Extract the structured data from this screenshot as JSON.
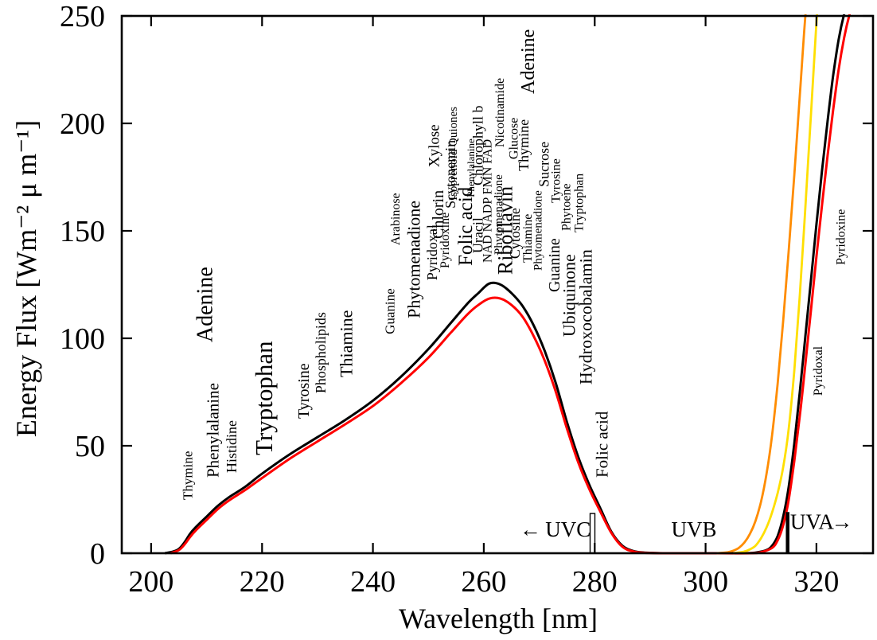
{
  "chart_data": {
    "type": "line",
    "title": "",
    "xlabel": "Wavelength [nm]",
    "ylabel": "Energy Flux [Wm⁻² μ m⁻¹]",
    "xlim": [
      194.7,
      330.2
    ],
    "ylim": [
      0,
      250
    ],
    "x_ticks": [
      200,
      220,
      240,
      260,
      280,
      300,
      320
    ],
    "y_ticks": [
      0,
      50,
      100,
      150,
      200,
      250
    ],
    "grid": false,
    "legend": "none",
    "colors": {
      "black": "#000000",
      "red": "#ff0000",
      "green": "#00c300",
      "blue": "#0000ee",
      "violet": "#ee82ee",
      "dark_red": "#a52a2a",
      "orange": "#ff8c00",
      "yellow": "#ffdf00"
    },
    "series": [
      {
        "name": "black-flux-curve",
        "color": "black",
        "width": 3,
        "points": [
          [
            202.5,
            0
          ],
          [
            204,
            0.8
          ],
          [
            205,
            2
          ],
          [
            206,
            5
          ],
          [
            207,
            9
          ],
          [
            208,
            12
          ],
          [
            210,
            17
          ],
          [
            212,
            22
          ],
          [
            214,
            26
          ],
          [
            217,
            31
          ],
          [
            220,
            37
          ],
          [
            225,
            46
          ],
          [
            230,
            54
          ],
          [
            235,
            62
          ],
          [
            240,
            71
          ],
          [
            245,
            82
          ],
          [
            250,
            95
          ],
          [
            254,
            107
          ],
          [
            257,
            116
          ],
          [
            259,
            121
          ],
          [
            261,
            125.5
          ],
          [
            263,
            125
          ],
          [
            265,
            121
          ],
          [
            267,
            115
          ],
          [
            269,
            106
          ],
          [
            271,
            94
          ],
          [
            273,
            79
          ],
          [
            275,
            61
          ],
          [
            277,
            45
          ],
          [
            279,
            32
          ],
          [
            281,
            21
          ],
          [
            283,
            10
          ],
          [
            285,
            3.5
          ],
          [
            287,
            1
          ],
          [
            289,
            0.3
          ],
          [
            293,
            0
          ],
          [
            300,
            0
          ],
          [
            307,
            0
          ],
          [
            309,
            0.3
          ],
          [
            311,
            1.5
          ],
          [
            312,
            3.5
          ],
          [
            313,
            8
          ],
          [
            314,
            17
          ],
          [
            315,
            31
          ],
          [
            316,
            51
          ],
          [
            317,
            75
          ],
          [
            318,
            101
          ],
          [
            319,
            127
          ],
          [
            320,
            153
          ],
          [
            321,
            178
          ],
          [
            322,
            201
          ],
          [
            323,
            222
          ],
          [
            324,
            239
          ],
          [
            325,
            251
          ],
          [
            326,
            259
          ]
        ]
      },
      {
        "name": "red-flux-curve",
        "color": "red",
        "width": 3,
        "points": [
          [
            203.5,
            0
          ],
          [
            205,
            1.5
          ],
          [
            206,
            4
          ],
          [
            207,
            7.5
          ],
          [
            208,
            10.5
          ],
          [
            210,
            15.5
          ],
          [
            212,
            20.5
          ],
          [
            214,
            24.5
          ],
          [
            217,
            29.5
          ],
          [
            220,
            35
          ],
          [
            225,
            44
          ],
          [
            230,
            52
          ],
          [
            235,
            60
          ],
          [
            240,
            68.5
          ],
          [
            245,
            79
          ],
          [
            250,
            91
          ],
          [
            254,
            102.5
          ],
          [
            257,
            111
          ],
          [
            259,
            115.5
          ],
          [
            261,
            118.5
          ],
          [
            263,
            118.5
          ],
          [
            265,
            115.5
          ],
          [
            267,
            110
          ],
          [
            269,
            101
          ],
          [
            271,
            89.5
          ],
          [
            273,
            75
          ],
          [
            275,
            58
          ],
          [
            277,
            42.5
          ],
          [
            279,
            30
          ],
          [
            281,
            19.5
          ],
          [
            283,
            9.5
          ],
          [
            285,
            3
          ],
          [
            287,
            0.8
          ],
          [
            289,
            0.2
          ],
          [
            293,
            0
          ],
          [
            300,
            0
          ],
          [
            308,
            0
          ],
          [
            310,
            0.5
          ],
          [
            312,
            2.5
          ],
          [
            313,
            6
          ],
          [
            314,
            13
          ],
          [
            315,
            25
          ],
          [
            316,
            43
          ],
          [
            317,
            64
          ],
          [
            318,
            88
          ],
          [
            319,
            113
          ],
          [
            320,
            138
          ],
          [
            321,
            162
          ],
          [
            322,
            185
          ],
          [
            323,
            206
          ],
          [
            324,
            225
          ],
          [
            325,
            240
          ],
          [
            326,
            251
          ],
          [
            327,
            259
          ]
        ]
      },
      {
        "name": "orange-flux-curve",
        "color": "orange",
        "width": 2.8,
        "points": [
          [
            302,
            0
          ],
          [
            304,
            0.5
          ],
          [
            305,
            1.2
          ],
          [
            306,
            2.5
          ],
          [
            307,
            5
          ],
          [
            308,
            9
          ],
          [
            309,
            15
          ],
          [
            310,
            24
          ],
          [
            311,
            37
          ],
          [
            312,
            55
          ],
          [
            313,
            79
          ],
          [
            314,
            108
          ],
          [
            315,
            141
          ],
          [
            316,
            176
          ],
          [
            317,
            213
          ],
          [
            318,
            250
          ],
          [
            318.6,
            262
          ]
        ]
      },
      {
        "name": "yellow-flux-curve",
        "color": "yellow",
        "width": 2.8,
        "points": [
          [
            305,
            0
          ],
          [
            307,
            0.8
          ],
          [
            308,
            1.8
          ],
          [
            309,
            3.5
          ],
          [
            310,
            7
          ],
          [
            311,
            12
          ],
          [
            312,
            19
          ],
          [
            313,
            28
          ],
          [
            314,
            40
          ],
          [
            315,
            58
          ],
          [
            316,
            85
          ],
          [
            317,
            120
          ],
          [
            318,
            161
          ],
          [
            319,
            204
          ],
          [
            320,
            247
          ],
          [
            320.4,
            262
          ]
        ]
      }
    ],
    "molecule_labels": [
      {
        "text": "Thymine",
        "nm": 206.7,
        "flux": 24.8,
        "size": 17,
        "color": "black"
      },
      {
        "text": "Phenylalanine",
        "nm": 211.2,
        "flux": 35.2,
        "size": 21,
        "color": "green"
      },
      {
        "text": "Histidine",
        "nm": 214.6,
        "flux": 37.4,
        "size": 18,
        "color": "green"
      },
      {
        "text": "Adenine",
        "nm": 209.8,
        "flux": 98.1,
        "size": 28,
        "color": "black"
      },
      {
        "text": "Tryptophan",
        "nm": 220.5,
        "flux": 45.6,
        "size": 31,
        "color": "green"
      },
      {
        "text": "Tyrosine",
        "nm": 227.6,
        "flux": 62.6,
        "size": 20,
        "color": "green"
      },
      {
        "text": "Phospholipids",
        "nm": 230.7,
        "flux": 74.4,
        "size": 18,
        "color": "violet"
      },
      {
        "text": "Thiamine",
        "nm": 235.3,
        "flux": 81.9,
        "size": 22,
        "color": "blue"
      },
      {
        "text": "Guanine",
        "nm": 243.1,
        "flux": 101.9,
        "size": 17,
        "color": "black"
      },
      {
        "text": "Arabinose",
        "nm": 244.1,
        "flux": 143.3,
        "size": 16,
        "color": "dark_red"
      },
      {
        "text": "Phytomenadione",
        "nm": 247.5,
        "flux": 109.3,
        "size": 22,
        "color": "blue"
      },
      {
        "text": "Pyridoxal",
        "nm": 250.8,
        "flux": 127.0,
        "size": 18,
        "color": "blue"
      },
      {
        "text": "Chlorin",
        "nm": 251.8,
        "flux": 146.3,
        "size": 20,
        "color": "red"
      },
      {
        "text": "Xylose",
        "nm": 251.1,
        "flux": 179.6,
        "size": 19,
        "color": "dark_red"
      },
      {
        "text": "Scytonemin",
        "nm": 254.1,
        "flux": 160.4,
        "size": 18,
        "color": "red"
      },
      {
        "text": "Isoprenoid Quiones",
        "nm": 254.5,
        "flux": 164.1,
        "size": 15,
        "color": "violet"
      },
      {
        "text": "Pyridoxine",
        "nm": 253.0,
        "flux": 132.6,
        "size": 16,
        "color": "blue"
      },
      {
        "text": "Folic acid",
        "nm": 256.8,
        "flux": 133.7,
        "size": 25,
        "color": "blue"
      },
      {
        "text": "Uracil",
        "nm": 259.0,
        "flux": 139.6,
        "size": 18,
        "color": "black"
      },
      {
        "text": "Phenylalanine",
        "nm": 257.7,
        "flux": 165.6,
        "size": 13,
        "color": "green"
      },
      {
        "text": "Chlorophyll b",
        "nm": 259.0,
        "flux": 171.1,
        "size": 18,
        "color": "red"
      },
      {
        "text": "NAD NADP FMN FAD",
        "nm": 260.7,
        "flux": 135.2,
        "size": 16,
        "color": "blue"
      },
      {
        "text": "Phytomenadione",
        "nm": 262.7,
        "flux": 138.9,
        "size": 15,
        "color": "blue"
      },
      {
        "text": "Riboflavin",
        "nm": 264.0,
        "flux": 129.6,
        "size": 26,
        "color": "blue"
      },
      {
        "text": "Nicotinamide",
        "nm": 262.9,
        "flux": 188.9,
        "size": 16,
        "color": "blue"
      },
      {
        "text": "Adenine",
        "nm": 268.0,
        "flux": 213.7,
        "size": 24,
        "color": "black"
      },
      {
        "text": "Glucose",
        "nm": 265.4,
        "flux": 183.3,
        "size": 16,
        "color": "dark_red"
      },
      {
        "text": "Thymine",
        "nm": 267.3,
        "flux": 177.8,
        "size": 18,
        "color": "black"
      },
      {
        "text": "Cytosine",
        "nm": 265.7,
        "flux": 137.0,
        "size": 18,
        "color": "black"
      },
      {
        "text": "Thiamine",
        "nm": 267.9,
        "flux": 135.2,
        "size": 16,
        "color": "blue"
      },
      {
        "text": "Phytomenadione",
        "nm": 269.8,
        "flux": 131.5,
        "size": 15,
        "color": "blue"
      },
      {
        "text": "Sucrose",
        "nm": 270.9,
        "flux": 170.4,
        "size": 18,
        "color": "dark_red"
      },
      {
        "text": "Tyrosine",
        "nm": 273.0,
        "flux": 163.0,
        "size": 16,
        "color": "green"
      },
      {
        "text": "Phytoene",
        "nm": 274.9,
        "flux": 150.0,
        "size": 16,
        "color": "red"
      },
      {
        "text": "Tryptophan",
        "nm": 277.2,
        "flux": 149.3,
        "size": 16,
        "color": "green"
      },
      {
        "text": "Guanine",
        "nm": 272.8,
        "flux": 121.5,
        "size": 20,
        "color": "black"
      },
      {
        "text": "Ubiquinone",
        "nm": 275.5,
        "flux": 100.7,
        "size": 22,
        "color": "blue"
      },
      {
        "text": "Hydroxocobalamin",
        "nm": 278.5,
        "flux": 78.5,
        "size": 22,
        "color": "blue"
      },
      {
        "text": "Folic acid",
        "nm": 281.4,
        "flux": 35.2,
        "size": 21,
        "color": "blue"
      },
      {
        "text": "Pyridoxal",
        "nm": 320.3,
        "flux": 73.3,
        "size": 16,
        "color": "blue"
      },
      {
        "text": "Pyridoxine",
        "nm": 324.4,
        "flux": 134.1,
        "size": 16,
        "color": "blue"
      }
    ],
    "annotations": {
      "uvc": {
        "arrow": "←",
        "label": "UVC",
        "arrow_nm": 268.4,
        "label_nm": 275.2,
        "flux": 7.8
      },
      "uvb": {
        "label": "UVB",
        "label_nm": 297.9,
        "flux": 7.8
      },
      "uva": {
        "label": "UVA",
        "arrow": "→",
        "label_nm": 319.2,
        "arrow_nm": 324.6,
        "flux": 11.3
      },
      "uvc_uvb_boundary": {
        "nm": 279.6,
        "flux_top": 18.5,
        "style": "double-thin"
      },
      "uvb_uva_boundary": {
        "nm": 314.8,
        "flux_top": 19.2,
        "style": "thick"
      }
    }
  }
}
